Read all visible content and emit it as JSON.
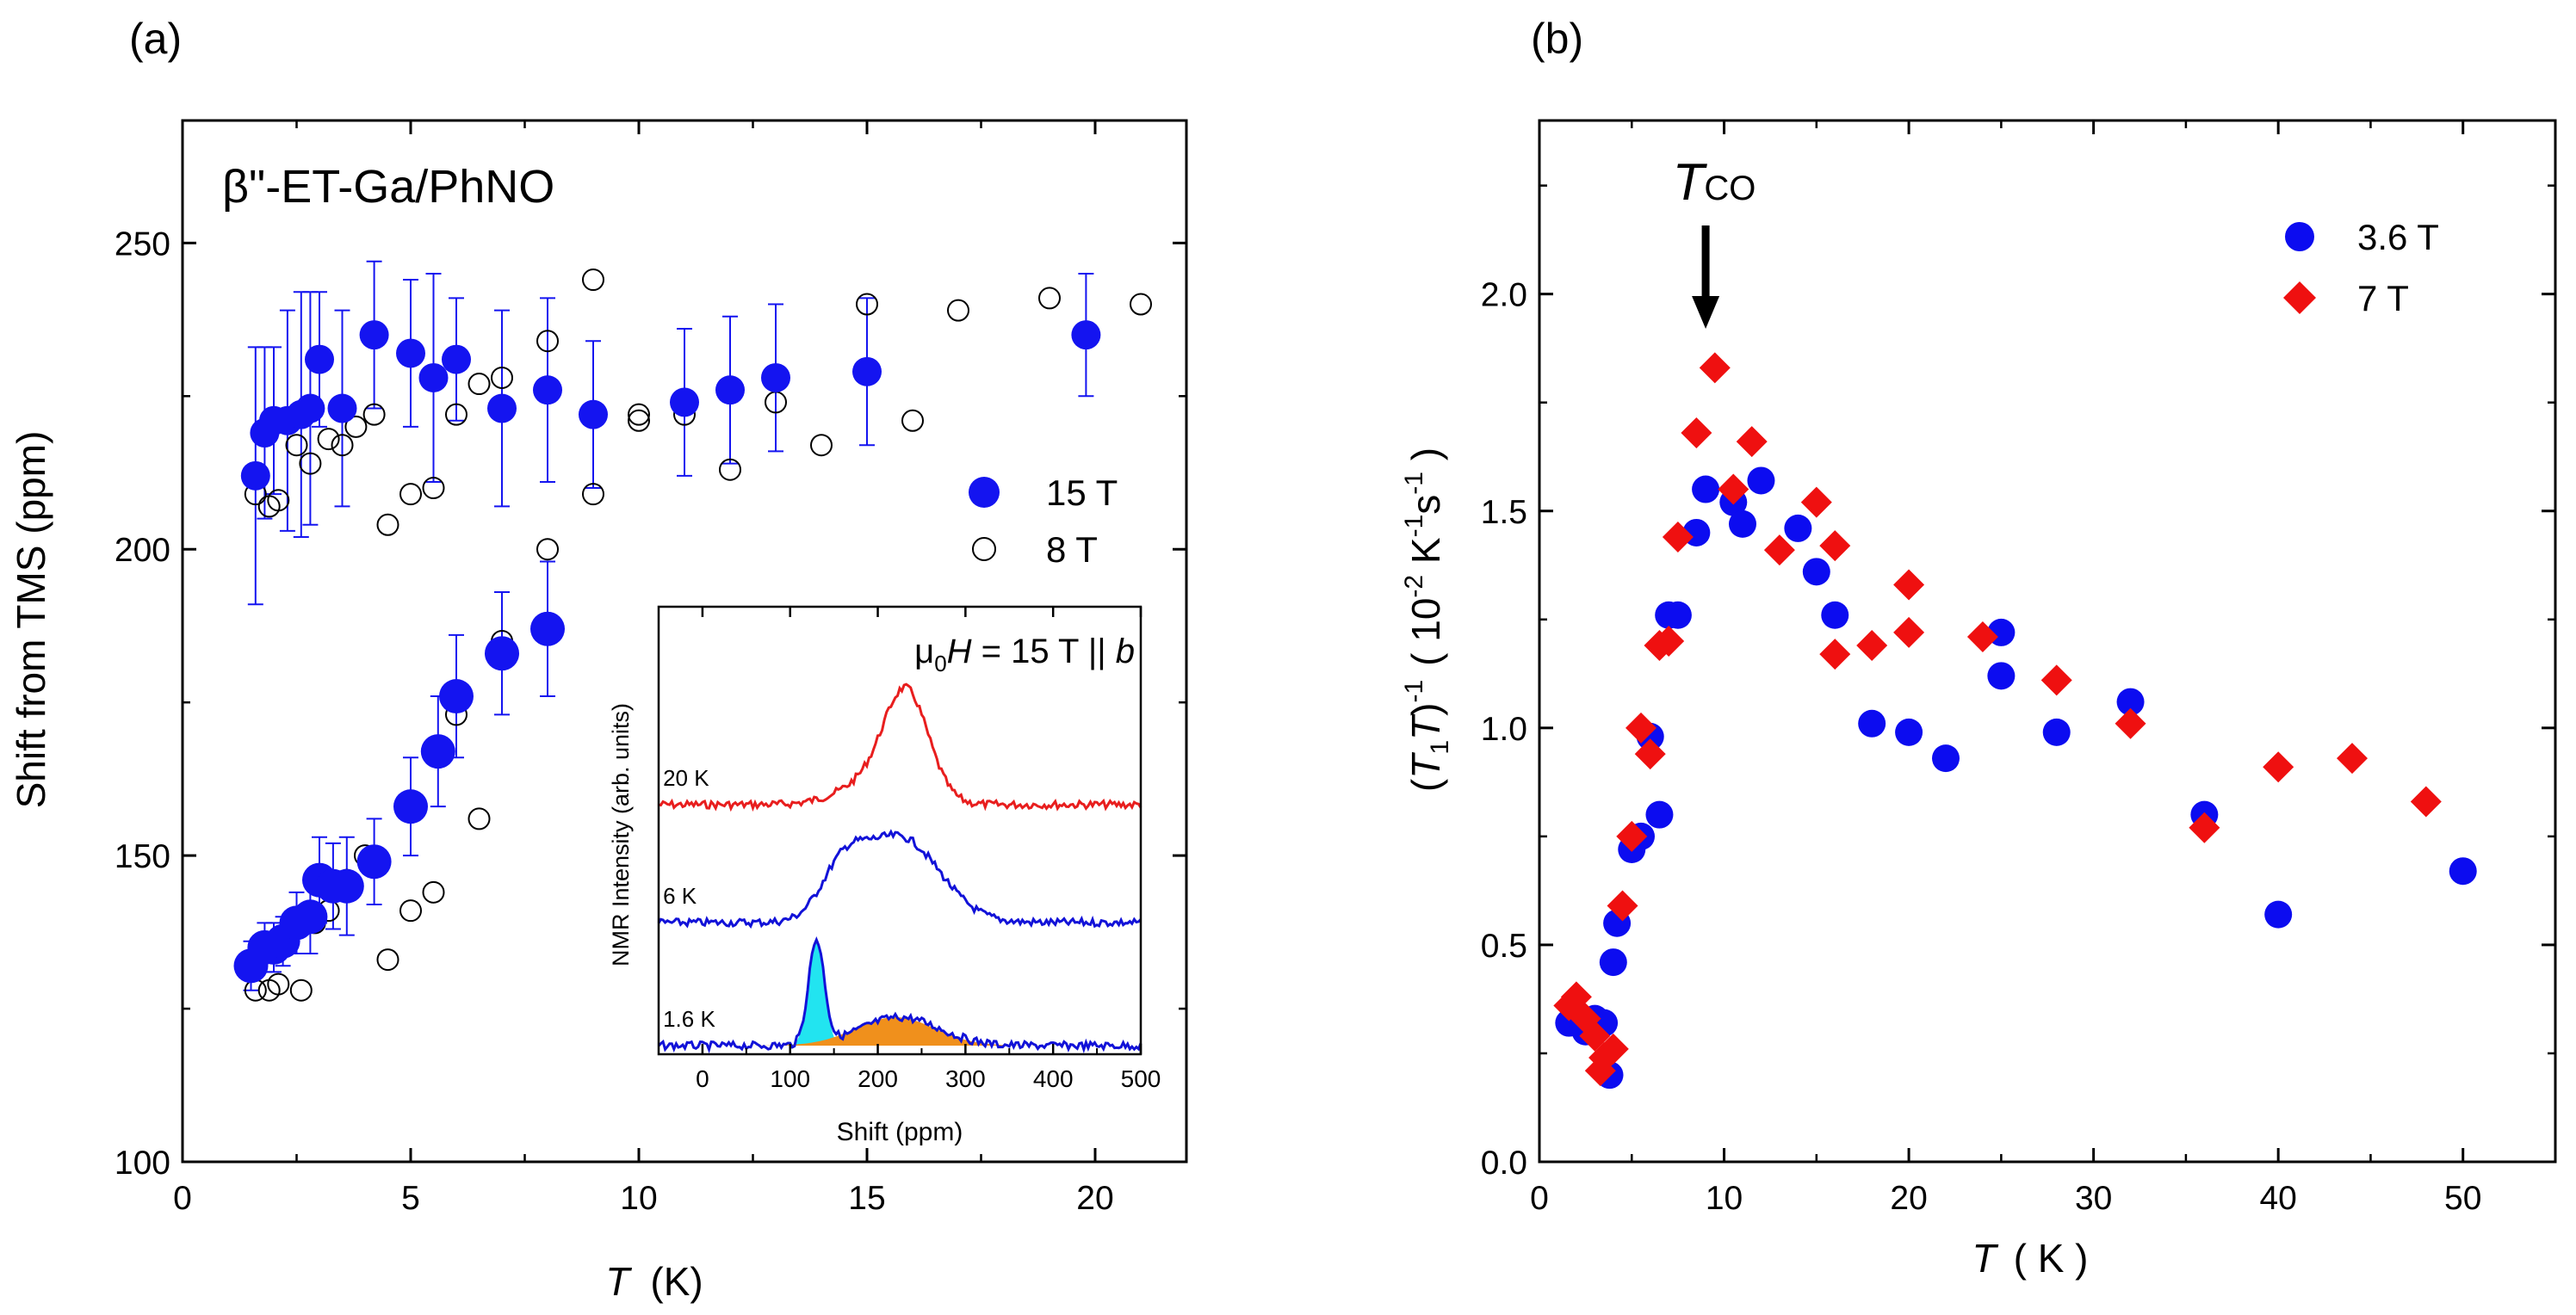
{
  "chart_data": [
    {
      "panel": "(a)",
      "type": "scatter",
      "title": "β\"-ET-Ga/PhNO",
      "xlabel_italic": "T",
      "xlabel_unit": "(K)",
      "ylabel": "Shift from TMS  (ppm)",
      "xlim": [
        0,
        22
      ],
      "ylim": [
        100,
        270
      ],
      "xticks": [
        0,
        5,
        10,
        15,
        20
      ],
      "yticks": [
        100,
        150,
        200,
        250
      ],
      "legend_position": "right",
      "series": [
        {
          "name": "15 T",
          "marker": "filled-circle",
          "color": "#1414f0",
          "points": [
            [
              1.6,
              212,
              21
            ],
            [
              1.8,
              219,
              14
            ],
            [
              2.0,
              221,
              12
            ],
            [
              2.3,
              221,
              18
            ],
            [
              2.6,
              222,
              20
            ],
            [
              2.8,
              223,
              19
            ],
            [
              3.0,
              231,
              11
            ],
            [
              3.5,
              223,
              16
            ],
            [
              4.2,
              235,
              12
            ],
            [
              5.0,
              232,
              12
            ],
            [
              5.5,
              228,
              17
            ],
            [
              6.0,
              231,
              10
            ],
            [
              7.0,
              223,
              16
            ],
            [
              8.0,
              226,
              15
            ],
            [
              9.0,
              222,
              12
            ],
            [
              11.0,
              224,
              12
            ],
            [
              12.0,
              226,
              12
            ],
            [
              13.0,
              228,
              12
            ],
            [
              15.0,
              229,
              12
            ],
            [
              19.8,
              235,
              10
            ],
            [
              1.5,
              132,
              4
            ],
            [
              1.8,
              135,
              4
            ],
            [
              2.0,
              135,
              4
            ],
            [
              2.2,
              136,
              4
            ],
            [
              2.5,
              139,
              5
            ],
            [
              2.8,
              140,
              6
            ],
            [
              3.0,
              146,
              7
            ],
            [
              3.3,
              145,
              7
            ],
            [
              3.6,
              145,
              8
            ],
            [
              4.2,
              149,
              7
            ],
            [
              5.0,
              158,
              8
            ],
            [
              5.6,
              167,
              9
            ],
            [
              6.0,
              176,
              10
            ],
            [
              7.0,
              183,
              10
            ],
            [
              8.0,
              187,
              11
            ]
          ]
        },
        {
          "name": "8 T",
          "marker": "open-circle",
          "color": "#000000",
          "points": [
            [
              1.6,
              209
            ],
            [
              1.9,
              207
            ],
            [
              2.1,
              208
            ],
            [
              2.5,
              217
            ],
            [
              2.8,
              214
            ],
            [
              3.2,
              218
            ],
            [
              3.5,
              217
            ],
            [
              3.8,
              220
            ],
            [
              4.2,
              222
            ],
            [
              4.5,
              204
            ],
            [
              5.0,
              209
            ],
            [
              5.5,
              210
            ],
            [
              6.0,
              222
            ],
            [
              6.5,
              227
            ],
            [
              7.0,
              228
            ],
            [
              8.0,
              234
            ],
            [
              9.0,
              209
            ],
            [
              9.0,
              244
            ],
            [
              10.0,
              221
            ],
            [
              10.0,
              222
            ],
            [
              11.0,
              222
            ],
            [
              12.0,
              213
            ],
            [
              13.0,
              224
            ],
            [
              14.0,
              217
            ],
            [
              15.0,
              240
            ],
            [
              16.0,
              221
            ],
            [
              17.0,
              239
            ],
            [
              19.0,
              241
            ],
            [
              21.0,
              240
            ],
            [
              1.6,
              128
            ],
            [
              1.9,
              128
            ],
            [
              2.1,
              129
            ],
            [
              2.6,
              128
            ],
            [
              2.9,
              139
            ],
            [
              3.2,
              141
            ],
            [
              3.6,
              146
            ],
            [
              4.0,
              150
            ],
            [
              4.5,
              133
            ],
            [
              5.0,
              141
            ],
            [
              5.5,
              144
            ],
            [
              6.0,
              173
            ],
            [
              6.5,
              156
            ],
            [
              7.0,
              185
            ],
            [
              8.0,
              200
            ]
          ]
        }
      ],
      "inset": {
        "title_mu0": "μ",
        "title_sub": "0",
        "title_H": "H",
        "title_rest": " = 15 T  ||  ",
        "title_b": "b",
        "xlabel": "Shift  (ppm)",
        "ylabel": "NMR Intensity  (arb. units)",
        "xlim": [
          -50,
          500
        ],
        "xticks": [
          0,
          100,
          200,
          300,
          400,
          500
        ],
        "traces": [
          {
            "label": "20 K",
            "color": "#e81e1e",
            "peak_center_ppm": 233,
            "peak_width_ppm": 25,
            "peak_height": 1.0,
            "shoulder_center_ppm": 200,
            "shoulder_width_ppm": 40,
            "shoulder_height": 0.25
          },
          {
            "label": "6 K",
            "color": "#1212d8",
            "peak_center_ppm": 225,
            "peak_width_ppm": 45,
            "peak_height": 0.9,
            "shoulder_center_ppm": 160,
            "shoulder_width_ppm": 25,
            "shoulder_height": 0.45
          },
          {
            "label": "1.6 K",
            "color": "#1212d8",
            "peak_center_ppm": 130,
            "peak_width_ppm": 9,
            "peak_height": 2.0,
            "shoulder_center_ppm": 225,
            "shoulder_width_ppm": 45,
            "shoulder_height": 0.55
          }
        ],
        "fills": [
          {
            "name": "narrow-component",
            "color": "#22e4f0",
            "center_ppm": 130,
            "width_ppm": 9,
            "height": 2.0
          },
          {
            "name": "broad-component",
            "color": "#f0901c",
            "center_ppm": 220,
            "width_ppm": 45,
            "height": 0.55
          }
        ]
      }
    },
    {
      "panel": "(b)",
      "type": "scatter",
      "xlabel_italic": "T",
      "xlabel_unit": "( K )",
      "ylabel": "(T1T)^-1 ( 10^-2 K^-1 s^-1 )",
      "xlim": [
        0,
        55
      ],
      "ylim": [
        0,
        2.4
      ],
      "xticks": [
        0,
        10,
        20,
        30,
        40,
        50
      ],
      "yticks": [
        0.0,
        0.5,
        1.0,
        1.5,
        2.0
      ],
      "annotation": {
        "text": "T",
        "subscript": "CO",
        "x": 9,
        "arrow_to_y": 1.92
      },
      "legend_position": "top-right",
      "series": [
        {
          "name": "3.6 T",
          "marker": "circle",
          "color": "#0c0cf0",
          "points": [
            [
              1.6,
              0.32
            ],
            [
              2.0,
              0.34
            ],
            [
              2.5,
              0.3
            ],
            [
              3.0,
              0.33
            ],
            [
              3.5,
              0.32
            ],
            [
              3.8,
              0.2
            ],
            [
              4.0,
              0.46
            ],
            [
              4.2,
              0.55
            ],
            [
              5.0,
              0.72
            ],
            [
              5.5,
              0.75
            ],
            [
              6.0,
              0.98
            ],
            [
              6.5,
              0.8
            ],
            [
              7.0,
              1.26
            ],
            [
              7.5,
              1.26
            ],
            [
              8.5,
              1.45
            ],
            [
              9.0,
              1.55
            ],
            [
              10.5,
              1.52
            ],
            [
              11.0,
              1.47
            ],
            [
              12.0,
              1.57
            ],
            [
              14.0,
              1.46
            ],
            [
              15.0,
              1.36
            ],
            [
              16.0,
              1.26
            ],
            [
              18.0,
              1.01
            ],
            [
              20.0,
              0.99
            ],
            [
              22.0,
              0.93
            ],
            [
              25.0,
              1.22
            ],
            [
              25.0,
              1.12
            ],
            [
              28.0,
              0.99
            ],
            [
              32.0,
              1.06
            ],
            [
              36.0,
              0.8
            ],
            [
              40.0,
              0.57
            ],
            [
              50.0,
              0.67
            ]
          ]
        },
        {
          "name": "7 T",
          "marker": "diamond",
          "color": "#ef1010",
          "points": [
            [
              1.6,
              0.36
            ],
            [
              2.0,
              0.38
            ],
            [
              2.5,
              0.33
            ],
            [
              3.0,
              0.29
            ],
            [
              3.3,
              0.21
            ],
            [
              3.5,
              0.24
            ],
            [
              4.0,
              0.26
            ],
            [
              4.5,
              0.59
            ],
            [
              5.0,
              0.75
            ],
            [
              5.5,
              1.0
            ],
            [
              6.0,
              0.94
            ],
            [
              6.5,
              1.19
            ],
            [
              7.0,
              1.2
            ],
            [
              7.5,
              1.44
            ],
            [
              8.5,
              1.68
            ],
            [
              9.5,
              1.83
            ],
            [
              10.5,
              1.55
            ],
            [
              11.5,
              1.66
            ],
            [
              13.0,
              1.41
            ],
            [
              15.0,
              1.52
            ],
            [
              16.0,
              1.42
            ],
            [
              16.0,
              1.17
            ],
            [
              18.0,
              1.19
            ],
            [
              20.0,
              1.33
            ],
            [
              20.0,
              1.22
            ],
            [
              24.0,
              1.21
            ],
            [
              28.0,
              1.11
            ],
            [
              32.0,
              1.01
            ],
            [
              36.0,
              0.77
            ],
            [
              40.0,
              0.91
            ],
            [
              44.0,
              0.93
            ],
            [
              48.0,
              0.83
            ]
          ]
        }
      ]
    }
  ]
}
